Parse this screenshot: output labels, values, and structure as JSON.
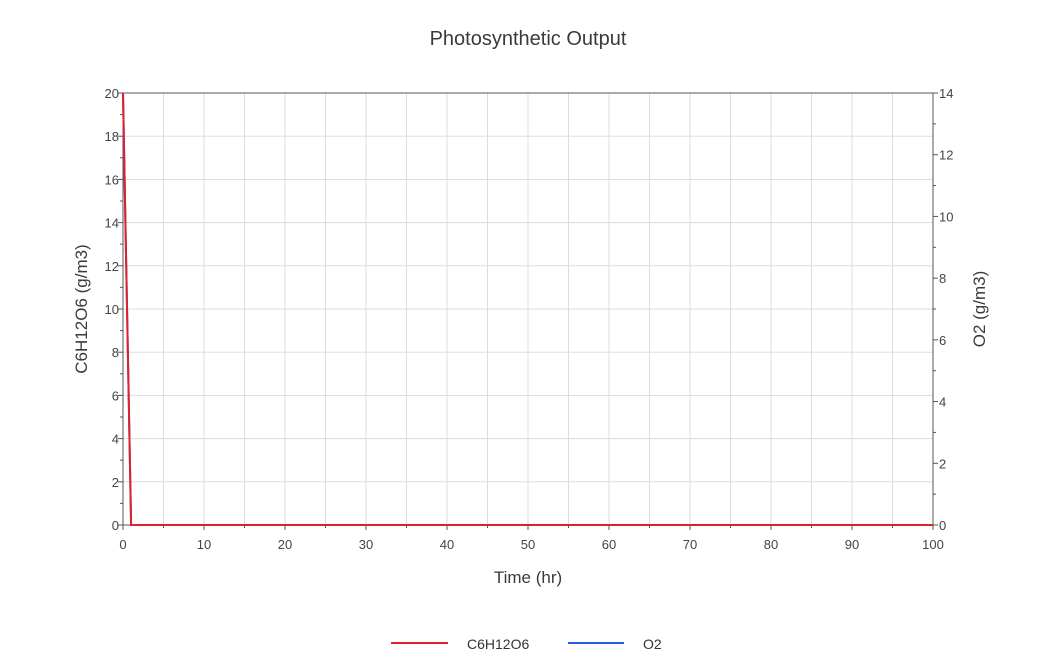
{
  "chart_data": {
    "type": "line",
    "title": "Photosynthetic Output",
    "xlabel": "Time (hr)",
    "ylabel": "C6H12O6 (g/m3)",
    "y2label": "O2 (g/m3)",
    "xlim": [
      0,
      100
    ],
    "ylim": [
      0,
      20
    ],
    "y2lim": [
      0,
      14
    ],
    "xticks": [
      0,
      10,
      20,
      30,
      40,
      50,
      60,
      70,
      80,
      90,
      100
    ],
    "yticks": [
      0,
      2,
      4,
      6,
      8,
      10,
      12,
      14,
      16,
      18,
      20
    ],
    "y2ticks": [
      0,
      2,
      4,
      6,
      8,
      10,
      12,
      14
    ],
    "grid": true,
    "legend_position": "bottom",
    "series": [
      {
        "name": "C6H12O6",
        "color": "#e0202a",
        "axis": "left",
        "x": [
          0,
          0.1,
          0.2,
          0.3,
          0.4,
          0.5,
          0.6,
          0.7,
          0.8,
          0.9,
          1.0,
          5,
          10,
          20,
          30,
          40,
          50,
          60,
          70,
          80,
          90,
          100
        ],
        "y": [
          20,
          18,
          16,
          14,
          12,
          10,
          8,
          6,
          4,
          2,
          0,
          0,
          0,
          0,
          0,
          0,
          0,
          0,
          0,
          0,
          0,
          0
        ]
      },
      {
        "name": "O2",
        "color": "#1f5fe0",
        "axis": "right",
        "x": [
          0,
          0.1,
          0.2,
          0.3,
          0.4,
          0.5,
          0.6,
          0.7,
          0.8,
          0.9,
          1.0,
          5,
          10,
          20,
          30,
          40,
          50,
          60,
          70,
          80,
          90,
          100
        ],
        "y": [
          14,
          12.6,
          11.2,
          9.8,
          8.4,
          7.0,
          5.6,
          4.2,
          2.8,
          1.4,
          0,
          0,
          0,
          0,
          0,
          0,
          0,
          0,
          0,
          0,
          0,
          0
        ]
      }
    ]
  }
}
